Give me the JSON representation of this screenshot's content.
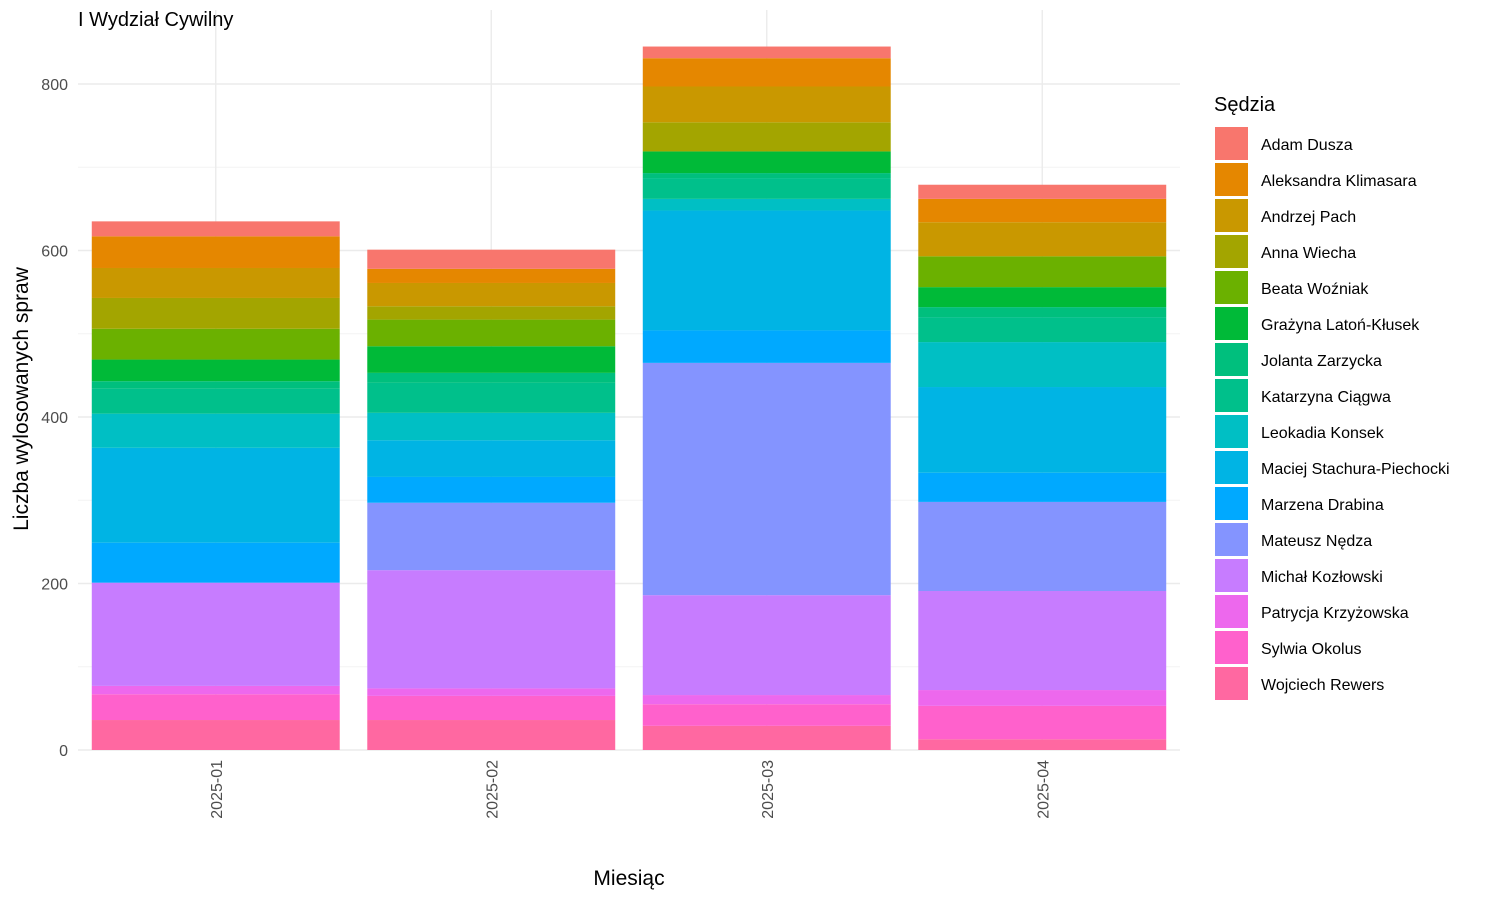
{
  "chart_data": {
    "type": "bar",
    "stacked": true,
    "title": "I Wydział Cywilny",
    "xlabel": "Miesiąc",
    "ylabel": "Liczba wylosowanych spraw",
    "ylim": [
      0,
      850
    ],
    "y_ticks": [
      0,
      200,
      400,
      600,
      800
    ],
    "grid": true,
    "legend_title": "Sędzia",
    "legend_position": "right",
    "categories": [
      "2025-01",
      "2025-02",
      "2025-03",
      "2025-04"
    ],
    "series": [
      {
        "name": "Adam Dusza",
        "color": "#F8766D",
        "values": [
          18,
          23,
          14,
          17
        ]
      },
      {
        "name": "Aleksandra Klimasara",
        "color": "#E58700",
        "values": [
          38,
          17,
          34,
          28
        ]
      },
      {
        "name": "Andrzej Pach",
        "color": "#C99800",
        "values": [
          36,
          28,
          43,
          41
        ]
      },
      {
        "name": "Anna Wiecha",
        "color": "#A3A500",
        "values": [
          37,
          16,
          35,
          0
        ]
      },
      {
        "name": "Beata Woźniak",
        "color": "#6BB100",
        "values": [
          37,
          32,
          0,
          37
        ]
      },
      {
        "name": "Grażyna Latoń-Kłusek",
        "color": "#00BA38",
        "values": [
          26,
          32,
          26,
          24
        ]
      },
      {
        "name": "Jolanta Zarzycka",
        "color": "#00BF7D",
        "values": [
          9,
          12,
          6,
          12
        ]
      },
      {
        "name": "Katarzyna Ciągwa",
        "color": "#00C08B",
        "values": [
          30,
          36,
          25,
          30
        ]
      },
      {
        "name": "Leokadia Konsek",
        "color": "#00BFC4",
        "values": [
          41,
          33,
          14,
          54
        ]
      },
      {
        "name": "Maciej Stachura-Piechocki",
        "color": "#00B4E4",
        "values": [
          114,
          44,
          144,
          103
        ]
      },
      {
        "name": "Marzena Drabina",
        "color": "#00A9FF",
        "values": [
          48,
          31,
          39,
          35
        ]
      },
      {
        "name": "Mateusz Nędza",
        "color": "#8494FF",
        "values": [
          0,
          81,
          279,
          107
        ]
      },
      {
        "name": "Michał Kozłowski",
        "color": "#C77CFF",
        "values": [
          124,
          142,
          120,
          119
        ]
      },
      {
        "name": "Patrycja Krzyżowska",
        "color": "#ED68ED",
        "values": [
          10,
          9,
          11,
          19
        ]
      },
      {
        "name": "Sylwia Okolus",
        "color": "#FF61CC",
        "values": [
          31,
          29,
          26,
          40
        ]
      },
      {
        "name": "Wojciech Rewers",
        "color": "#FF68A1",
        "values": [
          36,
          36,
          29,
          13
        ]
      }
    ]
  }
}
